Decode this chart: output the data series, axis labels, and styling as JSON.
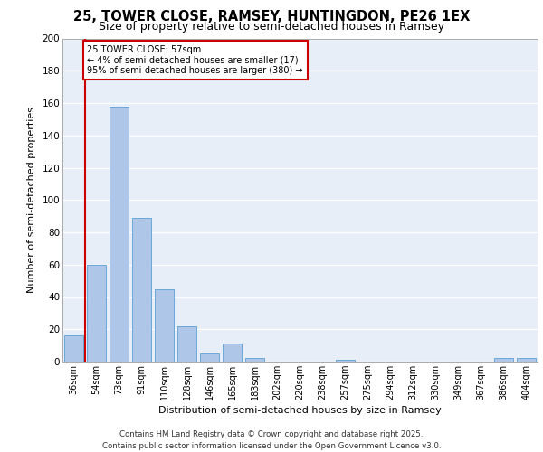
{
  "title1": "25, TOWER CLOSE, RAMSEY, HUNTINGDON, PE26 1EX",
  "title2": "Size of property relative to semi-detached houses in Ramsey",
  "xlabel": "Distribution of semi-detached houses by size in Ramsey",
  "ylabel": "Number of semi-detached properties",
  "categories": [
    "36sqm",
    "54sqm",
    "73sqm",
    "91sqm",
    "110sqm",
    "128sqm",
    "146sqm",
    "165sqm",
    "183sqm",
    "202sqm",
    "220sqm",
    "238sqm",
    "257sqm",
    "275sqm",
    "294sqm",
    "312sqm",
    "330sqm",
    "349sqm",
    "367sqm",
    "386sqm",
    "404sqm"
  ],
  "values": [
    16,
    60,
    158,
    89,
    45,
    22,
    5,
    11,
    2,
    0,
    0,
    0,
    1,
    0,
    0,
    0,
    0,
    0,
    0,
    2,
    2
  ],
  "bar_color": "#aec6e8",
  "bar_edge_color": "#5a9fd4",
  "vline_x": 0.5,
  "vline_color": "#cc0000",
  "annotation_title": "25 TOWER CLOSE: 57sqm",
  "annotation_line1": "← 4% of semi-detached houses are smaller (17)",
  "annotation_line2": "95% of semi-detached houses are larger (380) →",
  "annotation_box_color": "#cc0000",
  "ylim": [
    0,
    200
  ],
  "yticks": [
    0,
    20,
    40,
    60,
    80,
    100,
    120,
    140,
    160,
    180,
    200
  ],
  "footer1": "Contains HM Land Registry data © Crown copyright and database right 2025.",
  "footer2": "Contains public sector information licensed under the Open Government Licence v3.0.",
  "background_color": "#e8eef8",
  "grid_color": "#ffffff",
  "title1_fontsize": 10.5,
  "title2_fontsize": 9,
  "xlabel_fontsize": 8,
  "ylabel_fontsize": 8,
  "tick_fontsize": 7,
  "ytick_fontsize": 7.5,
  "footer_fontsize": 6.2,
  "annot_fontsize": 7
}
